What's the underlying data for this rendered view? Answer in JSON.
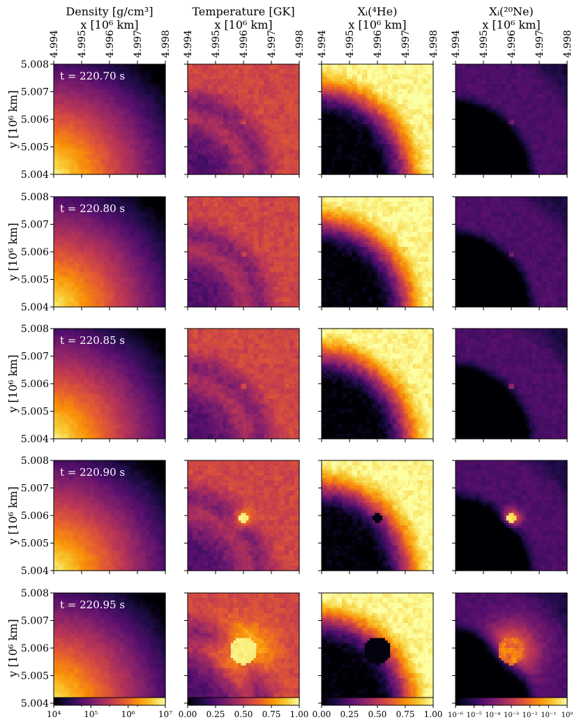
{
  "columns": [
    {
      "title": "Density [g/cm³]",
      "xlabel": "x [10⁶ km]"
    },
    {
      "title": "Temperature [GK]",
      "xlabel": "x [10⁶ km]"
    },
    {
      "title": "Xᵢ(⁴He)",
      "xlabel": "x [10⁶ km]"
    },
    {
      "title": "Xᵢ(²⁰Ne)",
      "xlabel": "x [10⁶ km]"
    }
  ],
  "ylabel": "y [10⁶ km]",
  "x_ticks": [
    "4.994",
    "4.995",
    "4.996",
    "4.997",
    "4.998"
  ],
  "y_ticks": [
    "5.008",
    "5.007",
    "5.006",
    "5.005",
    "5.004"
  ],
  "time_labels": [
    "t = 220.70 s",
    "t = 220.80 s",
    "t = 220.85 s",
    "t = 220.90 s",
    "t = 220.95 s"
  ],
  "colorbars": [
    {
      "field": "Density",
      "scale": "log",
      "range": [
        10000,
        10000000
      ],
      "ticks": [
        "10⁴",
        "10⁵",
        "10⁶",
        "10⁷"
      ]
    },
    {
      "field": "Temperature",
      "scale": "linear",
      "range": [
        0,
        1
      ],
      "ticks": [
        "0.00",
        "0.25",
        "0.50",
        "0.75",
        "1.00"
      ]
    },
    {
      "field": "X(4He)",
      "scale": "linear",
      "range": [
        0,
        1
      ],
      "ticks": [
        "0.00",
        "0.25",
        "0.50",
        "0.75",
        "1.00"
      ]
    },
    {
      "field": "X(20Ne)",
      "scale": "log",
      "range": [
        1e-06,
        1
      ],
      "ticks": [
        "10⁻⁶",
        "10⁻⁵",
        "10⁻⁴",
        "10⁻³",
        "10⁻²",
        "10⁻¹",
        "10⁰"
      ]
    }
  ],
  "colormap": "inferno",
  "chart_data": {
    "type": "heatmap",
    "layout": "grid of 5 time snapshots (rows) by 4 fields (columns)",
    "xlim": [
      4.994,
      4.998
    ],
    "ylim": [
      5.004,
      5.008
    ],
    "times_s": [
      220.7,
      220.8,
      220.85,
      220.9,
      220.95
    ],
    "fields": [
      "Density",
      "Temperature",
      "X(4He)",
      "X(20Ne)"
    ],
    "hotspot_center": [
      4.996,
      5.0059
    ],
    "hotspot_radius": [
      3e-05,
      3e-05,
      4e-05,
      0.00017,
      0.0005
    ]
  }
}
